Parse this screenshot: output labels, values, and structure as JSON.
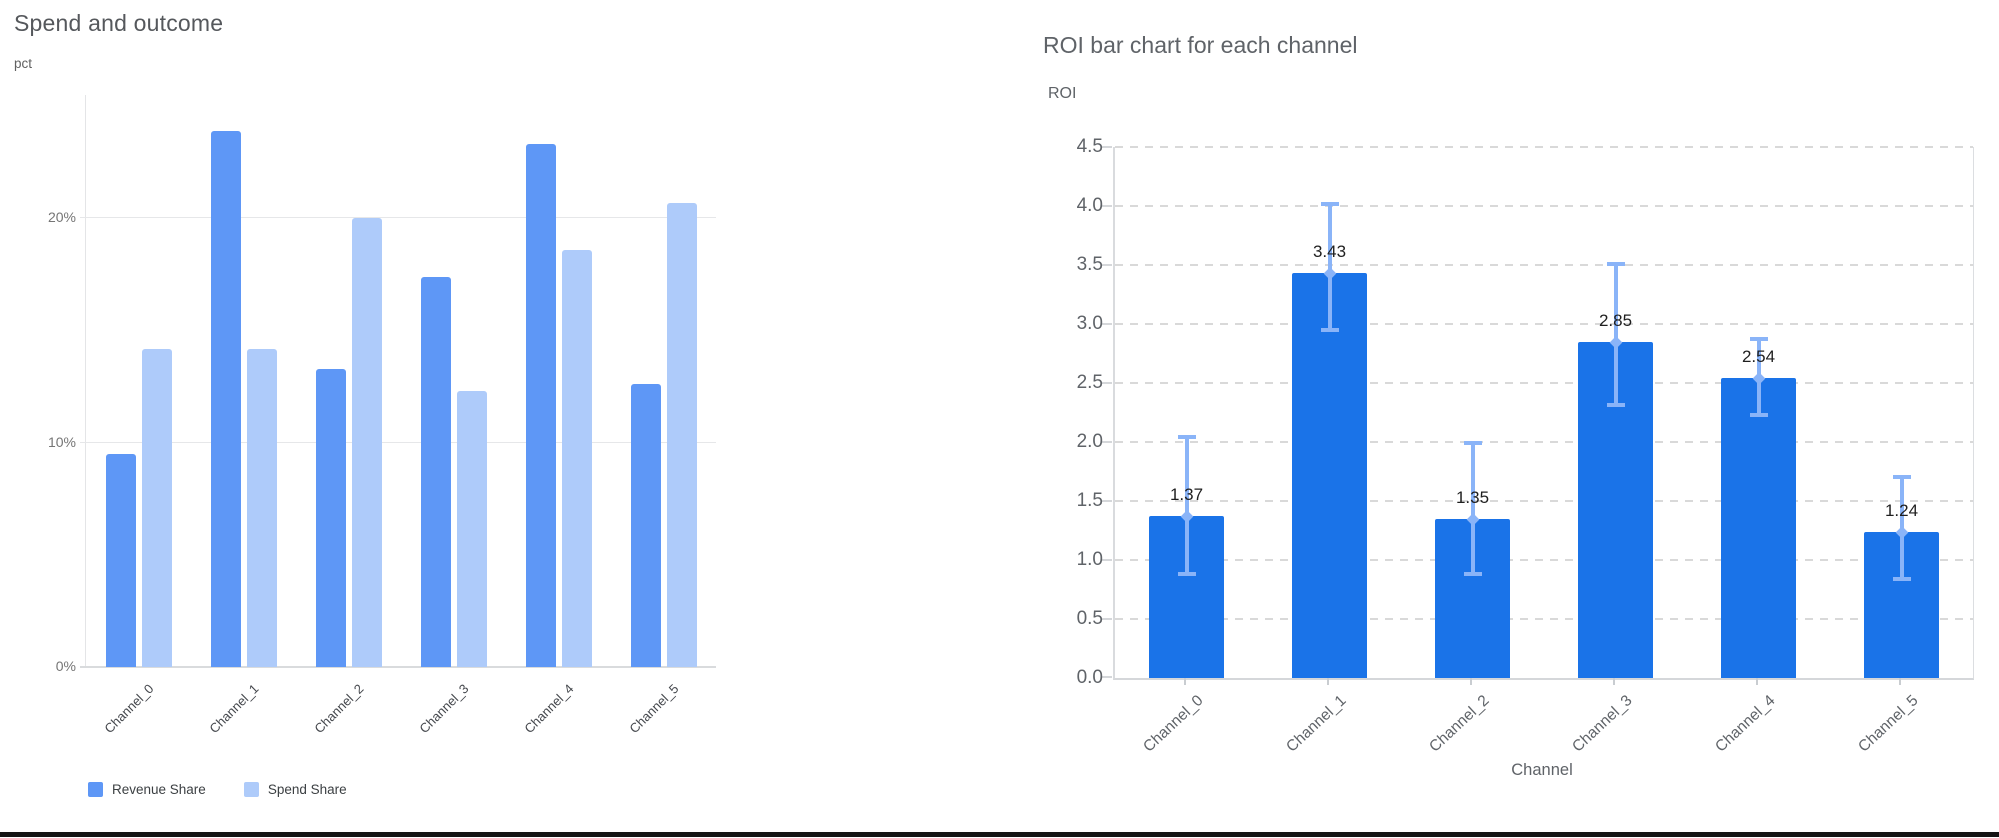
{
  "page": {
    "background": "#ffffff",
    "bottom_rule_color": "#141414"
  },
  "chart_data": [
    {
      "id": "spend_and_outcome",
      "type": "bar",
      "title": "Spend and outcome",
      "ylabel": "pct",
      "xlabel": "",
      "unit": "%",
      "categories": [
        "Channel_0",
        "Channel_1",
        "Channel_2",
        "Channel_3",
        "Channel_4",
        "Channel_5"
      ],
      "series": [
        {
          "name": "Revenue Share",
          "color": "#5e97f6",
          "values": [
            9.5,
            23.9,
            13.3,
            17.4,
            23.3,
            12.6
          ]
        },
        {
          "name": "Spend Share",
          "color": "#aecbfa",
          "values": [
            14.2,
            14.2,
            20.0,
            12.3,
            18.6,
            20.7
          ]
        }
      ],
      "ylim": [
        0,
        25.5
      ],
      "y_ticks": [
        {
          "value": 0,
          "label": "0%"
        },
        {
          "value": 10,
          "label": "10%"
        },
        {
          "value": 20,
          "label": "20%"
        }
      ],
      "grid": "solid-horizontal",
      "legend_position": "bottom"
    },
    {
      "id": "roi_by_channel",
      "type": "bar",
      "title": "ROI bar chart for each channel",
      "ylabel": "ROI",
      "xlabel": "Channel",
      "categories": [
        "Channel_0",
        "Channel_1",
        "Channel_2",
        "Channel_3",
        "Channel_4",
        "Channel_5"
      ],
      "series": [
        {
          "name": "ROI",
          "color": "#1a73e8",
          "values": [
            1.37,
            3.43,
            1.35,
            2.85,
            2.54,
            1.24
          ],
          "data_labels": [
            "1.37",
            "3.43",
            "1.35",
            "2.85",
            "2.54",
            "1.24"
          ]
        }
      ],
      "error_bars": {
        "color": "#8ab4f8",
        "low": [
          0.88,
          2.95,
          0.88,
          2.31,
          2.23,
          0.84
        ],
        "high": [
          2.04,
          4.02,
          1.99,
          3.51,
          2.87,
          1.7
        ]
      },
      "ylim": [
        0,
        4.5
      ],
      "y_tick_step": 0.5,
      "y_tick_labels": [
        "0.0",
        "0.5",
        "1.0",
        "1.5",
        "2.0",
        "2.5",
        "3.0",
        "3.5",
        "4.0",
        "4.5"
      ],
      "grid": "dashed-horizontal",
      "legend_position": "none"
    }
  ]
}
